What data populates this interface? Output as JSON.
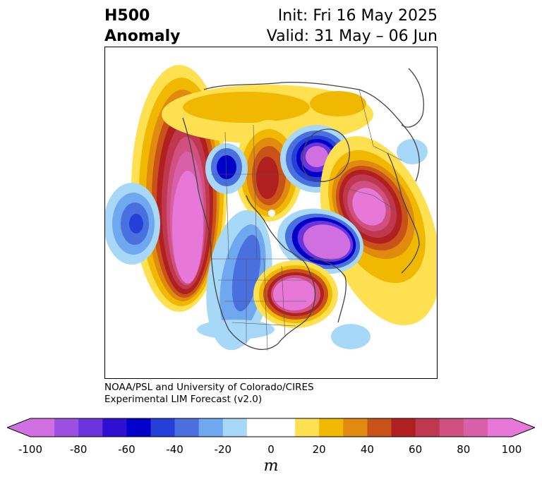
{
  "title": {
    "variable": "H500",
    "kind": "Anomaly",
    "init": "Init: Fri 16 May 2025",
    "valid": "Valid: 31 May – 06 Jun"
  },
  "credit": {
    "line1": "NOAA/PSL and University of Colorado/CIRES",
    "line2": "Experimental LIM Forecast (v2.0)"
  },
  "colorbar": {
    "unit": "m",
    "bins": [
      {
        "from": -100,
        "to": -90,
        "color": "#d070e0"
      },
      {
        "from": -90,
        "to": -80,
        "color": "#9c50e0"
      },
      {
        "from": -80,
        "to": -70,
        "color": "#6a35dc"
      },
      {
        "from": -70,
        "to": -60,
        "color": "#3010d0"
      },
      {
        "from": -60,
        "to": -50,
        "color": "#0000c8"
      },
      {
        "from": -50,
        "to": -40,
        "color": "#2440d8"
      },
      {
        "from": -40,
        "to": -30,
        "color": "#4a70e0"
      },
      {
        "from": -30,
        "to": -20,
        "color": "#70a8f0"
      },
      {
        "from": -20,
        "to": -10,
        "color": "#a8d8f8"
      },
      {
        "from": -10,
        "to": 10,
        "color": "#ffffff"
      },
      {
        "from": 10,
        "to": 20,
        "color": "#ffe050"
      },
      {
        "from": 20,
        "to": 30,
        "color": "#f0b800"
      },
      {
        "from": 30,
        "to": 40,
        "color": "#e08a10"
      },
      {
        "from": 40,
        "to": 50,
        "color": "#c85218"
      },
      {
        "from": 50,
        "to": 60,
        "color": "#b02020"
      },
      {
        "from": 60,
        "to": 70,
        "color": "#c03850"
      },
      {
        "from": 70,
        "to": 80,
        "color": "#d05080"
      },
      {
        "from": 80,
        "to": 90,
        "color": "#d860a8"
      },
      {
        "from": 90,
        "to": 100,
        "color": "#e878d8"
      }
    ],
    "extend_low_color": "#d070e0",
    "extend_high_color": "#e878d8",
    "ticks": [
      "-100",
      "-80",
      "-60",
      "-40",
      "-20",
      "0",
      "20",
      "40",
      "60",
      "80",
      "100"
    ]
  }
}
